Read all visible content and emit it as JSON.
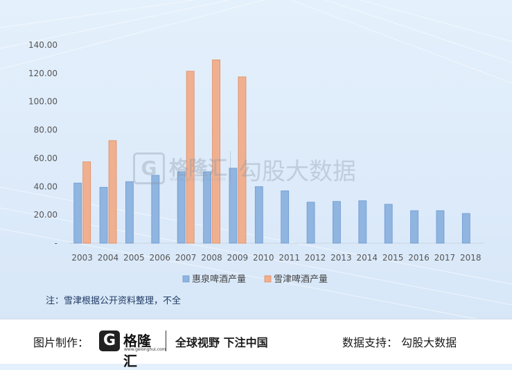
{
  "chart_data": {
    "type": "bar",
    "categories": [
      "2003",
      "2004",
      "2005",
      "2006",
      "2007",
      "2008",
      "2009",
      "2010",
      "2011",
      "2012",
      "2013",
      "2014",
      "2015",
      "2016",
      "2017",
      "2018"
    ],
    "series": [
      {
        "name": "惠泉啤酒产量",
        "color": "#8fb5e0",
        "values": [
          42.5,
          39.5,
          43.5,
          48,
          50.5,
          50.5,
          53,
          40,
          37,
          29,
          29.5,
          30,
          27.5,
          23,
          23,
          21
        ]
      },
      {
        "name": "雪津啤酒产量",
        "color": "#f0b090",
        "values": [
          57.5,
          72.5,
          null,
          null,
          121.5,
          129.5,
          117.5,
          null,
          null,
          null,
          null,
          null,
          null,
          null,
          null,
          null
        ]
      }
    ],
    "ylim": [
      0,
      140
    ],
    "yticks": [
      "-",
      "20.00",
      "40.00",
      "60.00",
      "80.00",
      "100.00",
      "120.00",
      "140.00"
    ],
    "grid": false,
    "legend": "bottom"
  },
  "note": "注：雪津根据公开资料整理，不全",
  "watermark": {
    "brand": "格隆汇",
    "url": "www.gelonghui.com",
    "name": "勾股大数据"
  },
  "footer": {
    "made_by": "图片制作：",
    "logo_brand": "格隆汇",
    "logo_url": "www.gelonghui.com",
    "slogan": "全球视野 下注中国",
    "support": "数据支持：  勾股大数据"
  }
}
